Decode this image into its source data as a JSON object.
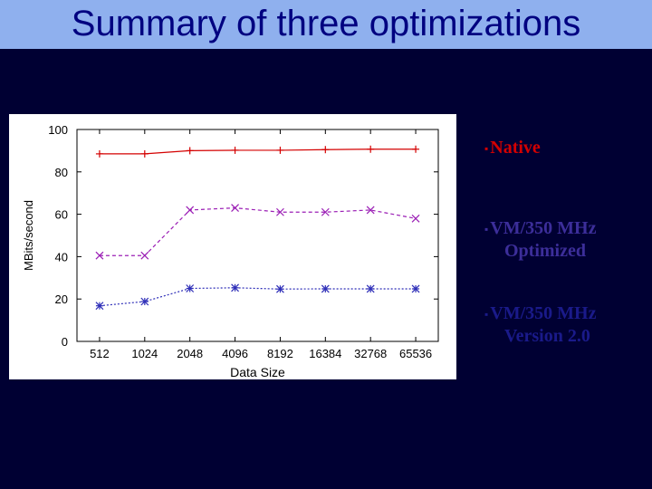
{
  "slide": {
    "title": "Summary of three optimizations"
  },
  "legend": {
    "native": {
      "bullet": "▪",
      "line1": "Native",
      "line2": ""
    },
    "optimized": {
      "bullet": "▪",
      "line1": "VM/350 MHz",
      "line2": "Optimized"
    },
    "v2": {
      "bullet": "▪",
      "line1": "VM/350 MHz",
      "line2": "Version 2.0"
    }
  },
  "chart_data": {
    "type": "line",
    "title": "",
    "xlabel": "Data Size",
    "ylabel": "MBits/second",
    "categories": [
      "512",
      "1024",
      "2048",
      "4096",
      "8192",
      "16384",
      "32768",
      "65536"
    ],
    "ylim": [
      0,
      100
    ],
    "yticks": [
      0,
      20,
      40,
      60,
      80,
      100
    ],
    "grid": false,
    "series": [
      {
        "name": "Native",
        "color": "#d40000",
        "marker": "plus",
        "dash": "solid",
        "values": [
          88.5,
          88.5,
          90,
          90.2,
          90.2,
          90.5,
          90.7,
          90.7
        ]
      },
      {
        "name": "VM/350 MHz Optimized",
        "color": "#9b1fb5",
        "marker": "x",
        "dash": "dashed",
        "values": [
          40.5,
          40.5,
          62,
          63,
          61,
          61,
          62,
          58
        ]
      },
      {
        "name": "VM/350 MHz Version 2.0",
        "color": "#2f2fb8",
        "marker": "star",
        "dash": "dotted",
        "values": [
          16.8,
          18.8,
          25,
          25.3,
          24.7,
          24.8,
          24.8,
          24.8
        ]
      }
    ]
  }
}
